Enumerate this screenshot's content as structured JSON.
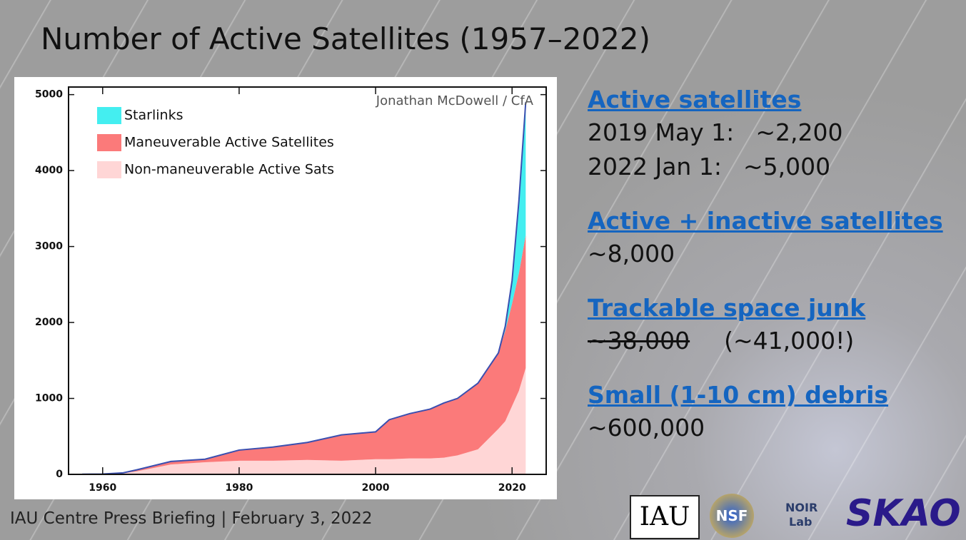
{
  "chart_data": {
    "type": "stacked-area",
    "title": "Number of Active Satellites (1957–2022)",
    "annotation": "Jonathan McDowell / CfA",
    "x": [
      1957,
      1960,
      1963,
      1965,
      1970,
      1975,
      1980,
      1985,
      1990,
      1995,
      2000,
      2002,
      2005,
      2008,
      2010,
      2012,
      2015,
      2018,
      2019,
      2020,
      2021,
      2022
    ],
    "series": [
      {
        "name": "Non-maneuverable Active Sats",
        "color": "#ffd6d6",
        "values": [
          2,
          5,
          15,
          40,
          130,
          160,
          180,
          180,
          190,
          180,
          200,
          200,
          210,
          210,
          220,
          250,
          330,
          600,
          700,
          900,
          1100,
          1400
        ]
      },
      {
        "name": "Maneuverable Active Satellites",
        "color": "#fb7a7a",
        "values": [
          0,
          0,
          5,
          20,
          40,
          40,
          140,
          180,
          230,
          340,
          360,
          520,
          590,
          650,
          720,
          750,
          870,
          1000,
          1190,
          1350,
          1550,
          1750
        ]
      },
      {
        "name": "Starlinks",
        "color": "#44eef0",
        "values": [
          0,
          0,
          0,
          0,
          0,
          0,
          0,
          0,
          0,
          0,
          0,
          0,
          0,
          0,
          0,
          0,
          0,
          0,
          60,
          300,
          950,
          1750
        ]
      }
    ],
    "xlim": [
      1955,
      2025
    ],
    "xticks": [
      1960,
      1980,
      2000,
      2020
    ],
    "ylim": [
      0,
      5100
    ],
    "yticks": [
      0,
      1000,
      2000,
      3000,
      4000,
      5000
    ],
    "legend": "top-left"
  },
  "panel": [
    {
      "heading": "Active satellites",
      "lines": [
        [
          "2019 May 1:",
          "~2,200"
        ],
        [
          "2022 Jan 1:",
          "~5,000"
        ]
      ]
    },
    {
      "heading": "Active + inactive satellites",
      "lines": [
        [
          "~8,000"
        ]
      ]
    },
    {
      "heading": "Trackable space junk",
      "struck": "~38,000",
      "lines": [
        [
          "(~41,000!)"
        ]
      ]
    },
    {
      "heading": "Small (1-10 cm) debris",
      "lines": [
        [
          "~600,000"
        ]
      ]
    }
  ],
  "footer": "IAU Centre Press Briefing | February 3, 2022",
  "logos": [
    "IAU",
    "NSF",
    "NOIR",
    "Lab",
    "SKAO"
  ]
}
